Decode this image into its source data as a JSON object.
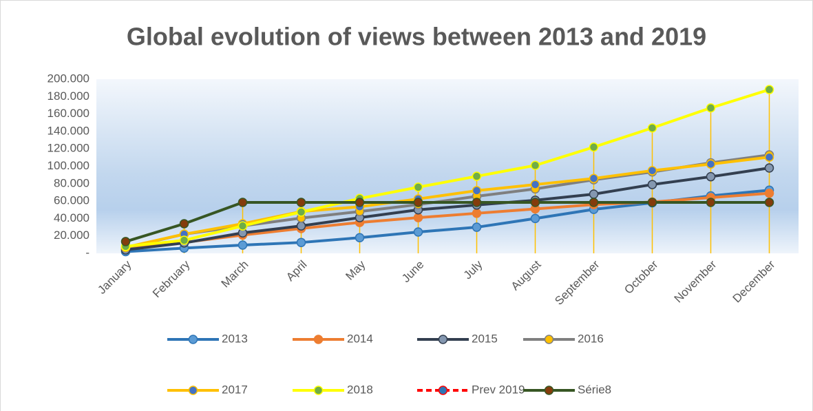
{
  "chart_data": {
    "type": "line",
    "title": "Global evolution of views between 2013 and 2019",
    "categories": [
      "January",
      "February",
      "March",
      "April",
      "May",
      "June",
      "July",
      "August",
      "September",
      "October",
      "November",
      "December"
    ],
    "ylim": [
      0,
      200000
    ],
    "yticks": [
      {
        "value": 0,
        "label": "-"
      },
      {
        "value": 20000,
        "label": "20.000"
      },
      {
        "value": 40000,
        "label": "40.000"
      },
      {
        "value": 60000,
        "label": "60.000"
      },
      {
        "value": 80000,
        "label": "80.000"
      },
      {
        "value": 100000,
        "label": "100.000"
      },
      {
        "value": 120000,
        "label": "120.000"
      },
      {
        "value": 140000,
        "label": "140.000"
      },
      {
        "value": 160000,
        "label": "160.000"
      },
      {
        "value": 180000,
        "label": "180.000"
      },
      {
        "value": 200000,
        "label": "200.000"
      }
    ],
    "grid": false,
    "drop_lines": true,
    "drop_line_color": "#ffc000",
    "legend": "bottom",
    "series": [
      {
        "name": "2013",
        "color": "#2e75b6",
        "marker_color": "#5b9bd5",
        "values": [
          2000,
          6000,
          9500,
          12500,
          18000,
          24500,
          30000,
          40000,
          50500,
          58000,
          66000,
          72500
        ]
      },
      {
        "name": "2014",
        "color": "#ed7d31",
        "marker_color": "#ed7d31",
        "values": [
          5000,
          12500,
          21000,
          28500,
          35500,
          41000,
          46000,
          51000,
          56000,
          59000,
          64000,
          69000
        ]
      },
      {
        "name": "2015",
        "color": "#333f50",
        "marker_color": "#8497b0",
        "values": [
          4000,
          12000,
          23500,
          31500,
          41000,
          50000,
          55500,
          61000,
          68000,
          79000,
          88000,
          98000
        ]
      },
      {
        "name": "2016",
        "color": "#7f7f7f",
        "marker_color": "#ffc000",
        "values": [
          6500,
          22000,
          31500,
          40500,
          48000,
          56000,
          65500,
          74000,
          84500,
          93500,
          104000,
          113000
        ]
      },
      {
        "name": "2017",
        "color": "#ffc000",
        "marker_color": "#4472c4",
        "values": [
          7000,
          22000,
          34000,
          48000,
          53500,
          62500,
          72000,
          79000,
          86000,
          95000,
          102500,
          110500
        ]
      },
      {
        "name": "2018",
        "color": "#ffff00",
        "marker_color": "#70ad47",
        "values": [
          8000,
          15000,
          31500,
          47500,
          63000,
          76000,
          88500,
          101000,
          122000,
          144000,
          167000,
          188000
        ]
      },
      {
        "name": "Prev 2019",
        "color": "#ff0000",
        "marker_color": "#2e75b6",
        "dashed": true,
        "values": [
          null,
          null,
          null,
          null,
          null,
          null,
          null,
          null,
          null,
          null,
          null,
          null
        ]
      },
      {
        "name": "Série8",
        "color": "#375623",
        "marker_color": "#843c0c",
        "values": [
          13500,
          34000,
          58500,
          58500,
          58500,
          58500,
          58500,
          58500,
          58500,
          58500,
          58500,
          58500
        ]
      }
    ]
  }
}
